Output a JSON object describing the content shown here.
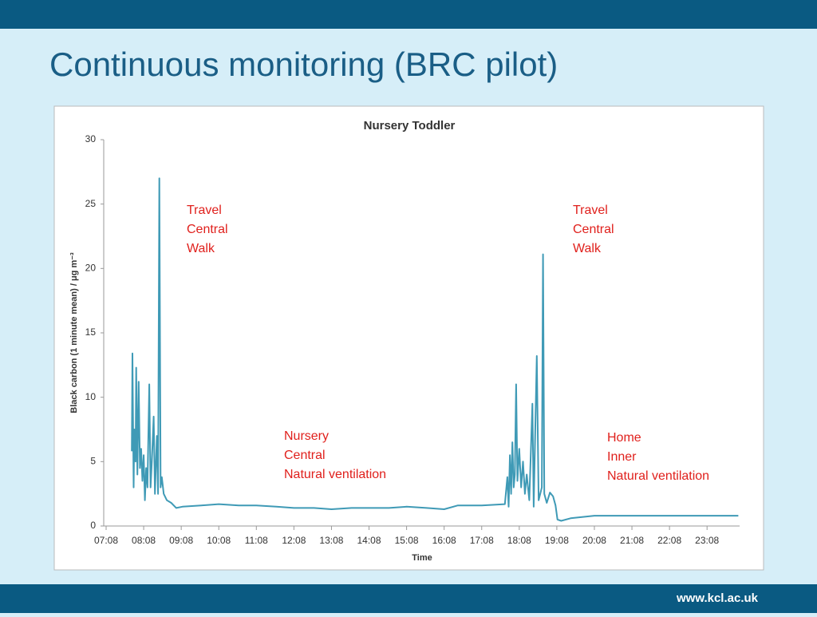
{
  "slide_title": "Continuous monitoring (BRC pilot)",
  "footer": "www.kcl.ac.uk",
  "chart_data": {
    "type": "line",
    "title": "Nursery Toddler",
    "x_label": "Time",
    "y_label": "Black carbon (1 minute mean) / μg m⁻³",
    "xlim": [
      "07:08",
      "24:00"
    ],
    "xticks": [
      "07:08",
      "08:08",
      "09:08",
      "10:08",
      "11:08",
      "12:08",
      "13:08",
      "14:08",
      "15:08",
      "16:08",
      "17:08",
      "18:08",
      "19:08",
      "20:08",
      "21:08",
      "22:08",
      "23:08"
    ],
    "ylim": [
      0,
      30
    ],
    "yticks": [
      0,
      5,
      10,
      15,
      20,
      25,
      30
    ],
    "annotations": [
      {
        "lines": [
          "Travel",
          "Central",
          "Walk"
        ]
      },
      {
        "lines": [
          "Travel",
          "Central",
          "Walk"
        ]
      },
      {
        "lines": [
          "Nursery",
          "Central",
          "Natural ventilation"
        ]
      },
      {
        "lines": [
          "Home",
          "Inner",
          "Natural ventilation"
        ]
      }
    ],
    "x": [
      "07:49",
      "07:50",
      "07:52",
      "07:53",
      "07:55",
      "07:56",
      "07:58",
      "08:00",
      "08:02",
      "08:04",
      "08:06",
      "08:08",
      "08:10",
      "08:12",
      "08:14",
      "08:17",
      "08:19",
      "08:21",
      "08:24",
      "08:26",
      "08:29",
      "08:31",
      "08:33",
      "08:35",
      "08:37",
      "08:40",
      "08:45",
      "08:52",
      "09:00",
      "09:10",
      "09:40",
      "10:08",
      "10:40",
      "11:08",
      "11:40",
      "12:08",
      "12:40",
      "13:08",
      "13:40",
      "14:08",
      "14:40",
      "15:08",
      "15:40",
      "16:08",
      "16:30",
      "17:08",
      "17:45",
      "17:49",
      "17:51",
      "17:53",
      "17:55",
      "17:57",
      "17:59",
      "18:01",
      "18:03",
      "18:05",
      "18:08",
      "18:11",
      "18:14",
      "18:17",
      "18:20",
      "18:24",
      "18:29",
      "18:31",
      "18:36",
      "18:39",
      "18:44",
      "18:46",
      "18:48",
      "18:52",
      "18:57",
      "19:02",
      "19:06",
      "19:09",
      "19:15",
      "19:30",
      "20:08",
      "21:08",
      "22:08",
      "23:08",
      "23:58"
    ],
    "series": [
      {
        "name": "Black carbon",
        "color": "#3f9ab6",
        "values": [
          5.8,
          13.4,
          3,
          7.5,
          5,
          12.3,
          4,
          11.2,
          4.5,
          6,
          3.5,
          5.5,
          2,
          4.5,
          3,
          11,
          3,
          5,
          8.5,
          2.5,
          7,
          2.5,
          27,
          3,
          3.8,
          2.5,
          2,
          1.8,
          1.4,
          1.5,
          1.6,
          1.7,
          1.6,
          1.6,
          1.5,
          1.4,
          1.4,
          1.3,
          1.4,
          1.4,
          1.4,
          1.5,
          1.4,
          1.3,
          1.6,
          1.6,
          1.7,
          3.8,
          1.5,
          5.5,
          2.5,
          6.5,
          3,
          4,
          11,
          3.5,
          6,
          3,
          5,
          2.5,
          4,
          2,
          9.5,
          1.5,
          13.2,
          2,
          3,
          21.1,
          2.5,
          1.8,
          2.6,
          2.3,
          1.6,
          0.5,
          0.4,
          0.6,
          0.8,
          0.8,
          0.8,
          0.8,
          0.8
        ]
      }
    ]
  }
}
